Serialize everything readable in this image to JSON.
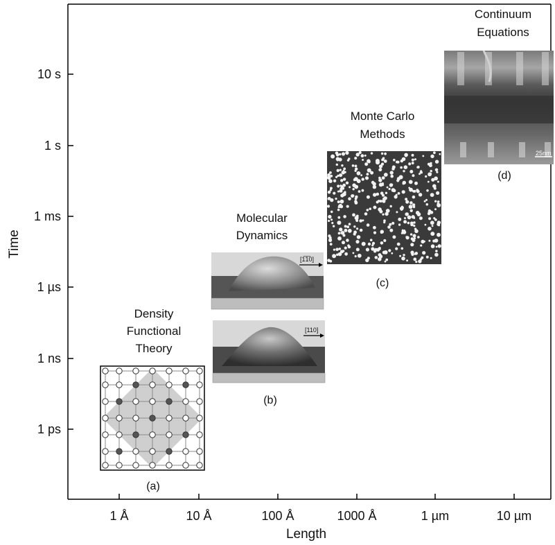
{
  "axes": {
    "x_title": "Length",
    "y_title": "Time",
    "x_ticks": [
      "1 Å",
      "10 Å",
      "100 Å",
      "1000 Å",
      "1 µm",
      "10 µm"
    ],
    "y_ticks": [
      "10 s",
      "1 s",
      "1 ms",
      "1 µs",
      "1 ns",
      "1 ps"
    ]
  },
  "methods": [
    {
      "id": "dft",
      "title_lines": [
        "Density",
        "Functional",
        "Theory"
      ],
      "caption": "(a)"
    },
    {
      "id": "md",
      "title_lines": [
        "Molecular",
        "Dynamics"
      ],
      "caption": "(b)",
      "arrow_labels": [
        "[1̅1̅0]",
        "[110]"
      ]
    },
    {
      "id": "mc",
      "title_lines": [
        "Monte Carlo",
        "Methods"
      ],
      "caption": "(c)"
    },
    {
      "id": "ce",
      "title_lines": [
        "Continuum",
        "Equations"
      ],
      "caption": "(d)",
      "scale_label": "25nm"
    }
  ]
}
